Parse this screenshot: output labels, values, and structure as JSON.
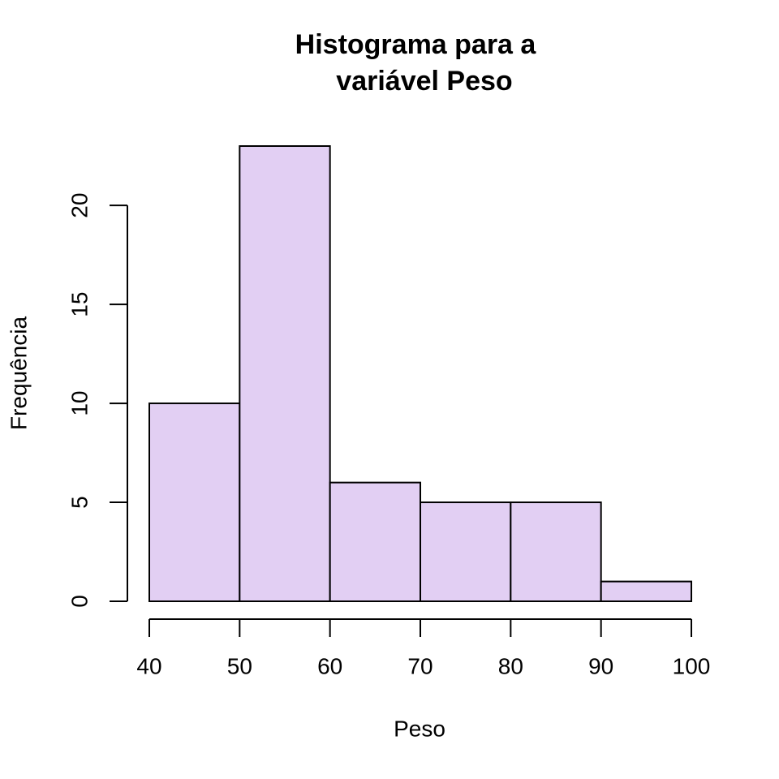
{
  "chart_data": {
    "type": "histogram",
    "title": [
      "Histograma para a",
      "variável Peso"
    ],
    "xlabel": "Peso",
    "ylabel": "Frequência",
    "bins": [
      40,
      50,
      60,
      70,
      80,
      90,
      100
    ],
    "counts": [
      10,
      23,
      6,
      5,
      5,
      1
    ],
    "color": "#e2cff3",
    "xlim": [
      40,
      100
    ],
    "xticks": [
      40,
      50,
      60,
      70,
      80,
      90,
      100
    ],
    "ylim": [
      0,
      23
    ],
    "yticks": [
      0,
      5,
      10,
      15,
      20
    ]
  }
}
